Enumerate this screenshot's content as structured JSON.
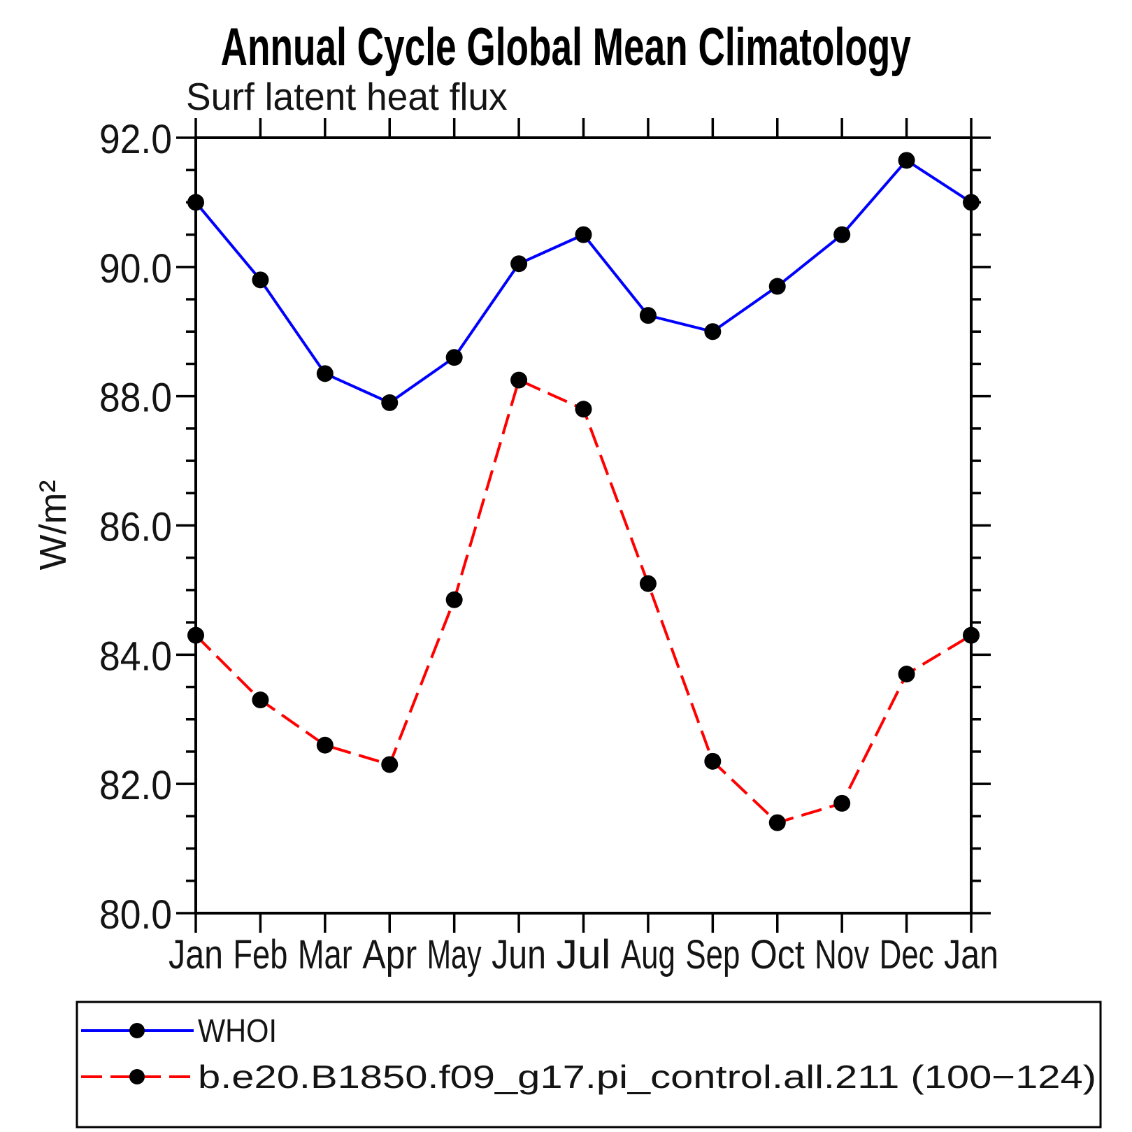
{
  "chart_data": {
    "type": "line",
    "title": "Annual Cycle Global Mean Climatology",
    "subtitle": "Surf latent heat flux",
    "ylabel": "W/m²",
    "categories": [
      "Jan",
      "Feb",
      "Mar",
      "Apr",
      "May",
      "Jun",
      "Jul",
      "Aug",
      "Sep",
      "Oct",
      "Nov",
      "Dec",
      "Jan"
    ],
    "ylim": [
      80.0,
      92.0
    ],
    "ytick_major_step": 2.0,
    "ytick_minor_step": 0.5,
    "yticks": [
      "92.0",
      "90.0",
      "88.0",
      "86.0",
      "84.0",
      "82.0",
      "80.0"
    ],
    "grid": false,
    "legend_position": "bottom-left-box",
    "series": [
      {
        "name": "WHOI",
        "color": "#0000ff",
        "line_style": "solid",
        "marker": "filled-circle",
        "marker_color": "#000000",
        "values": [
          91.0,
          89.8,
          88.35,
          87.9,
          88.6,
          90.05,
          90.5,
          89.25,
          89.0,
          89.7,
          90.5,
          91.65,
          91.0
        ]
      },
      {
        "name": "b.e20.B1850.f09_g17.pi_control.all.211 (100−124)",
        "color": "#ff0000",
        "line_style": "dashed",
        "marker": "filled-circle",
        "marker_color": "#000000",
        "values": [
          84.3,
          83.3,
          82.6,
          82.3,
          84.85,
          88.25,
          87.8,
          85.1,
          82.35,
          81.4,
          81.7,
          83.7,
          84.3
        ]
      }
    ]
  }
}
